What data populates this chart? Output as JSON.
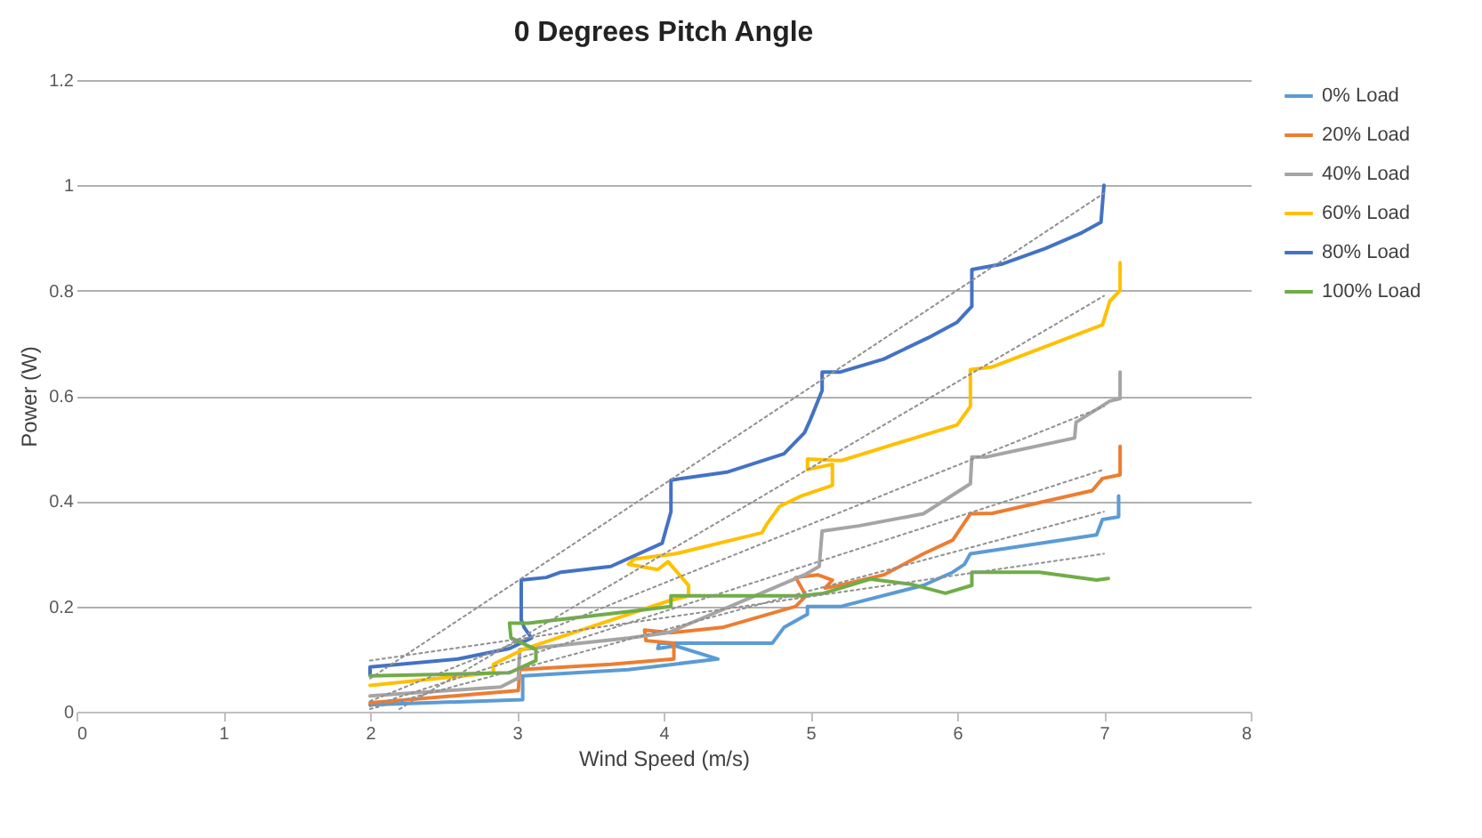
{
  "chart_data": {
    "type": "line",
    "title": "0 Degrees Pitch Angle",
    "xlabel": "Wind Speed (m/s)",
    "ylabel": "Power (W)",
    "xlim": [
      0,
      8
    ],
    "xticks": [
      0,
      1,
      2,
      3,
      4,
      5,
      6,
      7,
      8
    ],
    "ylim": [
      0,
      1.2
    ],
    "yticks": [
      0,
      0.2,
      0.4,
      0.6,
      0.8,
      1,
      1.2
    ],
    "grid": "y",
    "legend": "right",
    "series": [
      {
        "name": "0% Load",
        "color": "#5b9bd5",
        "x": [
          2.0,
          3.04,
          3.04,
          3.76,
          4.37,
          4.08,
          3.96,
          3.97,
          4.08,
          4.74,
          4.82,
          4.98,
          4.98,
          5.21,
          5.77,
          5.97,
          6.05,
          6.09,
          6.95,
          6.99,
          7.1,
          7.1
        ],
        "values": [
          0.013,
          0.023,
          0.068,
          0.08,
          0.1,
          0.125,
          0.12,
          0.13,
          0.13,
          0.13,
          0.16,
          0.185,
          0.2,
          0.2,
          0.24,
          0.265,
          0.28,
          0.3,
          0.336,
          0.365,
          0.37,
          0.41
        ]
      },
      {
        "name": "20% Load",
        "color": "#ed7d31",
        "x": [
          2.0,
          3.01,
          3.02,
          3.64,
          4.07,
          4.07,
          3.88,
          3.87,
          4.05,
          4.4,
          4.9,
          4.97,
          4.9,
          5.05,
          5.15,
          5.1,
          5.2,
          5.5,
          5.77,
          5.97,
          6.09,
          6.24,
          6.92,
          6.99,
          7.11,
          7.11
        ],
        "values": [
          0.017,
          0.04,
          0.08,
          0.09,
          0.1,
          0.13,
          0.135,
          0.155,
          0.15,
          0.16,
          0.2,
          0.22,
          0.255,
          0.26,
          0.25,
          0.235,
          0.24,
          0.26,
          0.3,
          0.326,
          0.376,
          0.377,
          0.42,
          0.443,
          0.45,
          0.504
        ]
      },
      {
        "name": "40% Load",
        "color": "#a5a5a5",
        "x": [
          2.0,
          2.89,
          3.01,
          3.02,
          3.76,
          4.03,
          4.96,
          5.06,
          5.08,
          5.33,
          5.77,
          6.09,
          6.1,
          6.2,
          6.8,
          6.81,
          7.04,
          7.11,
          7.11
        ],
        "values": [
          0.03,
          0.047,
          0.064,
          0.118,
          0.14,
          0.15,
          0.26,
          0.276,
          0.343,
          0.353,
          0.376,
          0.433,
          0.484,
          0.484,
          0.52,
          0.55,
          0.59,
          0.595,
          0.645
        ]
      },
      {
        "name": "60% Load",
        "color": "#ffc000",
        "x": [
          2.0,
          2.84,
          2.84,
          3.04,
          3.76,
          4.03,
          4.17,
          4.17,
          4.03,
          3.96,
          3.76,
          3.8,
          4.08,
          4.67,
          4.7,
          4.79,
          4.94,
          5.15,
          5.15,
          4.98,
          4.98,
          5.21,
          6.0,
          6.09,
          6.09,
          6.24,
          6.99,
          7.04,
          7.11,
          7.11
        ],
        "values": [
          0.05,
          0.074,
          0.09,
          0.118,
          0.185,
          0.21,
          0.22,
          0.24,
          0.285,
          0.27,
          0.28,
          0.29,
          0.3,
          0.34,
          0.355,
          0.39,
          0.41,
          0.43,
          0.47,
          0.46,
          0.48,
          0.477,
          0.545,
          0.58,
          0.65,
          0.655,
          0.735,
          0.78,
          0.8,
          0.853
        ]
      },
      {
        "name": "80% Load",
        "color": "#4472c4",
        "x": [
          2.0,
          2.0,
          2.6,
          2.95,
          3.1,
          3.05,
          3.03,
          3.03,
          3.2,
          3.3,
          3.64,
          3.99,
          4.05,
          4.05,
          4.43,
          4.82,
          4.96,
          5.0,
          5.08,
          5.08,
          5.2,
          5.5,
          5.8,
          6.0,
          6.1,
          6.1,
          6.3,
          6.6,
          6.85,
          6.98,
          7.0
        ],
        "values": [
          0.07,
          0.085,
          0.1,
          0.12,
          0.14,
          0.16,
          0.175,
          0.25,
          0.255,
          0.265,
          0.276,
          0.32,
          0.38,
          0.44,
          0.455,
          0.49,
          0.53,
          0.555,
          0.61,
          0.645,
          0.645,
          0.67,
          0.71,
          0.74,
          0.77,
          0.84,
          0.85,
          0.88,
          0.91,
          0.93,
          1.0
        ]
      },
      {
        "name": "100% Load",
        "color": "#70ad47",
        "x": [
          2.0,
          2.95,
          3.13,
          3.13,
          2.96,
          2.95,
          3.08,
          3.13,
          3.76,
          4.05,
          4.05,
          4.94,
          5.09,
          5.41,
          5.69,
          5.92,
          6.1,
          6.1,
          6.56,
          6.95,
          7.03
        ],
        "values": [
          0.068,
          0.074,
          0.097,
          0.118,
          0.14,
          0.168,
          0.168,
          0.17,
          0.19,
          0.2,
          0.22,
          0.22,
          0.225,
          0.252,
          0.242,
          0.225,
          0.24,
          0.265,
          0.265,
          0.25,
          0.253
        ]
      },
      {
        "color": "#909090",
        "line_style": "dotted",
        "x": [
          2.0,
          7.0
        ],
        "values": [
          0.005,
          0.38
        ]
      },
      {
        "color": "#909090",
        "line_style": "dotted",
        "x": [
          2.0,
          7.0
        ],
        "values": [
          0.01,
          0.46
        ]
      },
      {
        "color": "#909090",
        "line_style": "dotted",
        "x": [
          2.0,
          7.0
        ],
        "values": [
          0.02,
          0.58
        ]
      },
      {
        "color": "#909090",
        "line_style": "dotted",
        "x": [
          2.2,
          7.0
        ],
        "values": [
          0.005,
          0.79
        ]
      },
      {
        "color": "#909090",
        "line_style": "dotted",
        "x": [
          2.0,
          7.0
        ],
        "values": [
          0.063,
          0.985
        ]
      },
      {
        "color": "#909090",
        "line_style": "dotted",
        "x": [
          2.0,
          7.0
        ],
        "values": [
          0.097,
          0.3
        ]
      }
    ]
  }
}
